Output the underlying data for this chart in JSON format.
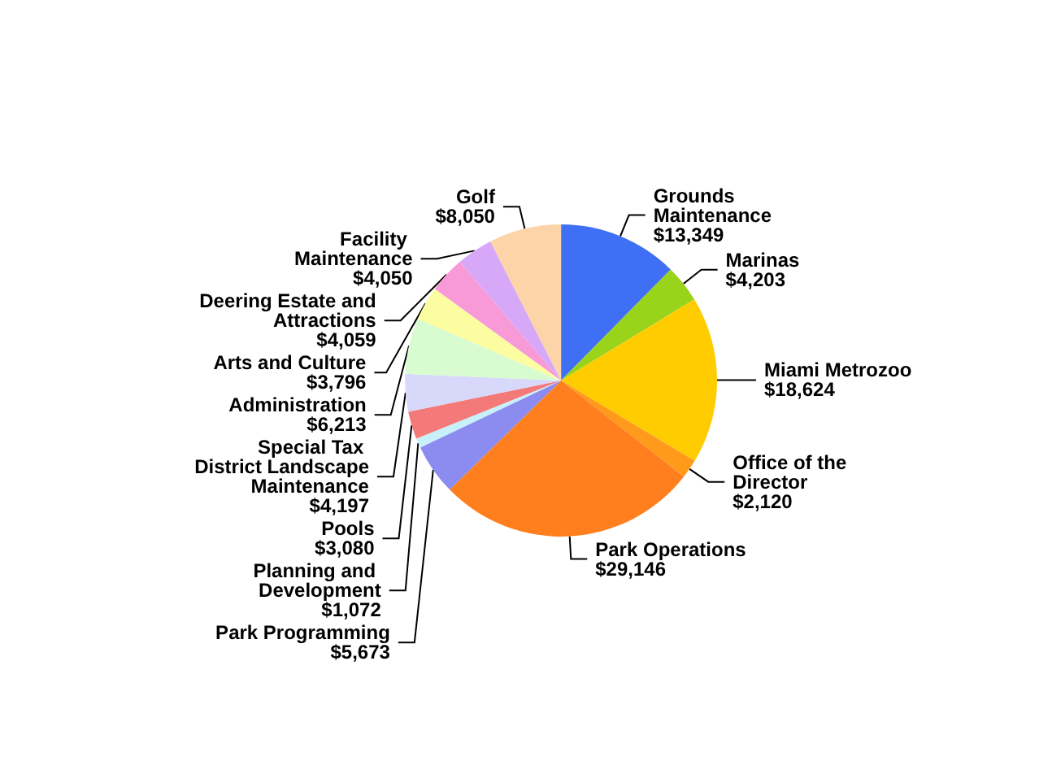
{
  "chart_data": {
    "type": "pie",
    "categories": [
      "Grounds Maintenance",
      "Marinas",
      "Miami Metrozoo",
      "Office of the Director",
      "Park Operations",
      "Park Programming",
      "Planning and Development",
      "Pools",
      "Special Tax District Landscape Maintenance",
      "Administration",
      "Arts and Culture",
      "Deering Estate and Attractions",
      "Facility Maintenance",
      "Golf"
    ],
    "values": [
      13349,
      4203,
      18624,
      2120,
      29146,
      5673,
      1072,
      3080,
      4197,
      6213,
      3796,
      4059,
      4050,
      8050
    ],
    "value_labels": [
      "$13,349",
      "$4,203",
      "$18,624",
      "$2,120",
      "$29,146",
      "$5,673",
      "$1,072",
      "$3,080",
      "$4,197",
      "$6,213",
      "$3,796",
      "$4,059",
      "$4,050",
      "$8,050"
    ],
    "colors": [
      "#3f6ff5",
      "#99d31a",
      "#ffcc00",
      "#ff9a1a",
      "#ff7f1f",
      "#8c8cf0",
      "#c8f0f8",
      "#f47a7a",
      "#d8d8fa",
      "#d8fcd0",
      "#fcfca0",
      "#f99ad8",
      "#d8a8f8",
      "#fcd4a8"
    ],
    "legend": false
  }
}
